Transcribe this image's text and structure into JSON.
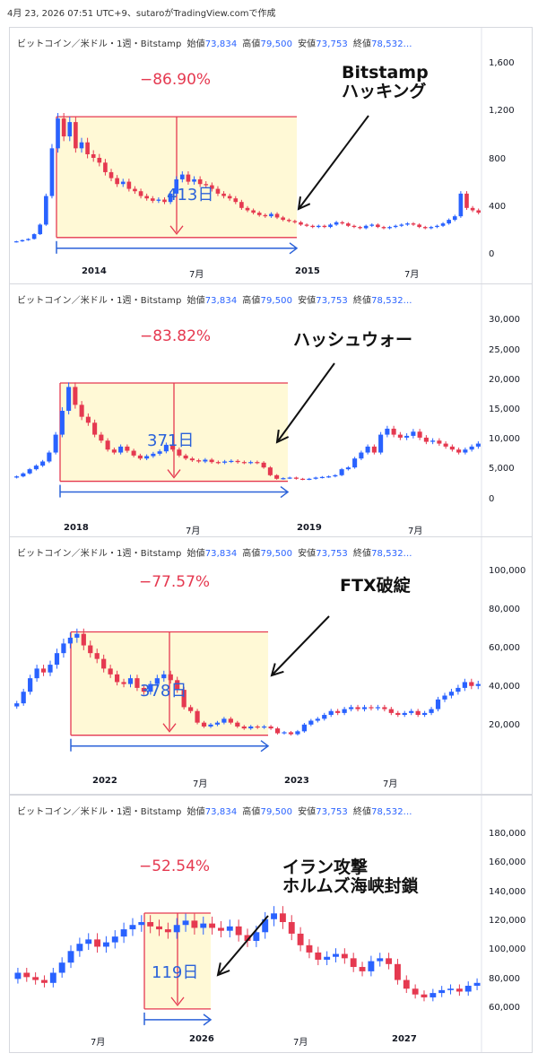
{
  "caption": "4月 23, 2026 07:51 UTC+9、sutaroがTradingView.comで作成",
  "header": {
    "symbol": "ビットコイン／米ドル・1週・Bitstamp",
    "open_label": "始値",
    "open": "73,834",
    "high_label": "高値",
    "high": "79,500",
    "low_label": "安値",
    "low": "73,753",
    "close_label": "終値",
    "close": "78,532..."
  },
  "colors": {
    "up": "#2962ff",
    "down": "#e53950",
    "measure_fill": "#fff9d6",
    "measure_red": "#e53950",
    "measure_blue": "#2b62d9"
  },
  "chart_data": [
    {
      "type": "candlestick",
      "event": "Bitstampハッキング",
      "event_lines": [
        "Bitstamp",
        "ハッキング"
      ],
      "drawdown": "−86.90%",
      "duration": "413日",
      "ylim": [
        0,
        1700
      ],
      "y_ticks": [
        "1,600",
        "1,200",
        "800",
        "400",
        "0"
      ],
      "y_tick_values": [
        1600,
        1200,
        800,
        400,
        0
      ],
      "x_ticks": [
        "2014",
        "7月",
        "2015",
        "7月"
      ],
      "x_ticks_bold": [
        true,
        false,
        true,
        false
      ],
      "series": [
        120,
        130,
        140,
        180,
        260,
        500,
        900,
        1150,
        1000,
        1120,
        900,
        950,
        850,
        820,
        780,
        700,
        650,
        600,
        620,
        560,
        540,
        500,
        480,
        460,
        470,
        450,
        520,
        640,
        680,
        620,
        640,
        600,
        590,
        560,
        520,
        500,
        480,
        450,
        400,
        380,
        360,
        340,
        330,
        350,
        320,
        300,
        290,
        280,
        260,
        250,
        240,
        250,
        240,
        260,
        280,
        270,
        250,
        240,
        230,
        250,
        260,
        240,
        230,
        240,
        250,
        260,
        270,
        260,
        240,
        230,
        240,
        250,
        270,
        300,
        330,
        520,
        400,
        380,
        360
      ],
      "peak_value": 1165,
      "trough_value": 152,
      "peak_week": 7,
      "trough_week": 48
    },
    {
      "type": "candlestick",
      "event": "ハッシュウォー",
      "event_lines": [
        "ハッシュウォー"
      ],
      "drawdown": "−83.82%",
      "duration": "371日",
      "ylim": [
        -2000,
        32000
      ],
      "y_ticks": [
        "30,000",
        "25,000",
        "20,000",
        "15,000",
        "10,000",
        "5,000",
        "0"
      ],
      "y_tick_values": [
        30000,
        25000,
        20000,
        15000,
        10000,
        5000,
        0
      ],
      "x_ticks": [
        "2018",
        "7月",
        "2019",
        "7月"
      ],
      "x_ticks_bold": [
        true,
        false,
        true,
        false
      ],
      "series": [
        4000,
        4500,
        5200,
        5800,
        6500,
        8000,
        11000,
        15000,
        19000,
        16000,
        14000,
        13000,
        11000,
        10000,
        8500,
        8000,
        9000,
        8300,
        7500,
        7000,
        7400,
        7800,
        8200,
        9300,
        8500,
        7500,
        7000,
        6700,
        6500,
        6800,
        6400,
        6300,
        6500,
        6600,
        6400,
        6300,
        6400,
        6300,
        5500,
        4200,
        3600,
        3700,
        3800,
        3600,
        3500,
        3600,
        3800,
        3900,
        4000,
        4200,
        5200,
        5500,
        7000,
        8000,
        9000,
        8000,
        11000,
        12000,
        11000,
        10500,
        10800,
        11500,
        10500,
        9800,
        10000,
        9500,
        9000,
        8500,
        8000,
        8500,
        9000,
        9500
      ],
      "peak_value": 19666,
      "trough_value": 3183,
      "peak_week": 8,
      "trough_week": 40
    },
    {
      "type": "candlestick",
      "event": "FTX破綻",
      "event_lines": [
        "FTX破綻"
      ],
      "drawdown": "−77.57%",
      "duration": "378日",
      "ylim": [
        0,
        105000
      ],
      "y_ticks": [
        "100,000",
        "80,000",
        "60,000",
        "40,000",
        "20,000"
      ],
      "y_tick_values": [
        100000,
        80000,
        60000,
        40000,
        20000
      ],
      "x_ticks": [
        "2022",
        "7月",
        "2023",
        "7月"
      ],
      "x_ticks_bold": [
        true,
        false,
        true,
        false
      ],
      "series": [
        32000,
        38000,
        45000,
        50000,
        48000,
        52000,
        58000,
        63000,
        66000,
        68000,
        62000,
        58000,
        55000,
        50000,
        47000,
        43000,
        42000,
        45000,
        40000,
        38000,
        42000,
        45000,
        47000,
        44000,
        39000,
        30000,
        28000,
        22000,
        20000,
        21000,
        22000,
        24000,
        22000,
        20000,
        19000,
        20000,
        19500,
        20000,
        19000,
        16500,
        17000,
        16000,
        17500,
        21000,
        23000,
        24000,
        26000,
        28000,
        27000,
        29000,
        30000,
        29000,
        30000,
        29500,
        30000,
        29000,
        27000,
        26000,
        27000,
        28000,
        26000,
        27000,
        29000,
        34000,
        36000,
        38000,
        40000,
        43000,
        41000,
        42000
      ],
      "peak_value": 69000,
      "trough_value": 15476,
      "peak_week": 7,
      "trough_week": 41
    },
    {
      "type": "candlestick",
      "event": "イラン攻撃 ホルムズ海峡封鎖",
      "event_lines": [
        "イラン攻撃",
        "ホルムズ海峡封鎖"
      ],
      "drawdown": "−52.54%",
      "duration": "119日",
      "ylim": [
        50000,
        190000
      ],
      "y_ticks": [
        "180,000",
        "160,000",
        "140,000",
        "120,000",
        "100,000",
        "80,000",
        "60,000"
      ],
      "y_tick_values": [
        180000,
        160000,
        140000,
        120000,
        100000,
        80000,
        60000
      ],
      "x_ticks": [
        "7月",
        "2026",
        "7月",
        "2027"
      ],
      "x_ticks_bold": [
        false,
        true,
        false,
        true
      ],
      "series": [
        85000,
        82000,
        80000,
        78000,
        85000,
        92000,
        100000,
        105000,
        108000,
        103000,
        106000,
        110000,
        115000,
        118000,
        120000,
        117000,
        115000,
        113000,
        118000,
        121000,
        116000,
        119000,
        116000,
        114000,
        117000,
        111000,
        107000,
        113000,
        122000,
        126000,
        120000,
        112000,
        104000,
        99000,
        94000,
        96000,
        98000,
        95000,
        89000,
        86000,
        93000,
        95000,
        91000,
        80000,
        74000,
        70000,
        68000,
        71000,
        73000,
        74000,
        72000,
        76000,
        78000
      ],
      "peak_value": 126200,
      "trough_value": 60000,
      "peak_week": 29,
      "trough_week": 47
    }
  ]
}
